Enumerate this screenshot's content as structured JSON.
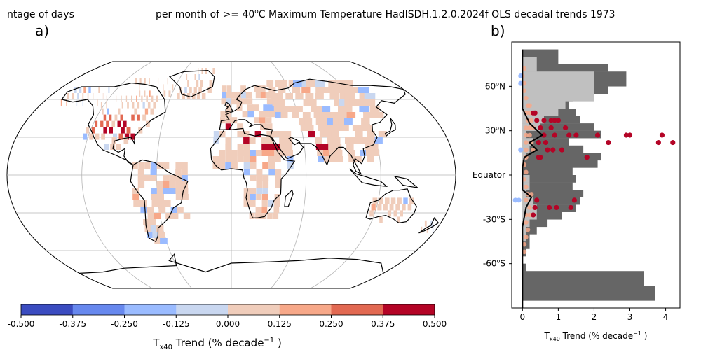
{
  "title": {
    "left": "ntage of days",
    "main": "per month of >= 40",
    "degree_sup": "o",
    "main_rest": "C Maximum Temperature HadISDH.1.2.0.2024f OLS decadal trends 1973"
  },
  "colors": {
    "colorbar": [
      "#3b4cc0",
      "#6788ee",
      "#9abbff",
      "#c9d7f0",
      "#f0cdbb",
      "#f7a889",
      "#e26952",
      "#b40426"
    ],
    "land_outline": "#000000",
    "graticule": "#b4b4b4",
    "dark_bar": "#666666",
    "light_bar": "#c0c0c0"
  },
  "chart_data": [
    {
      "type": "heatmap",
      "panel_label": "a)",
      "projection": "Robinson",
      "colorbar": {
        "ticks": [
          "-0.500",
          "-0.375",
          "-0.250",
          "-0.125",
          "0.000",
          "0.125",
          "0.250",
          "0.375",
          "0.500"
        ],
        "range": [
          -0.5,
          0.5
        ],
        "label_main": "T",
        "label_sub": "x40",
        "label_rest": " Trend (% decade",
        "label_sup": "−1",
        "label_end": " )"
      }
    },
    {
      "type": "scatter",
      "panel_label": "b)",
      "xlabel": {
        "main": "T",
        "sub": "x40",
        "rest": " Trend (% decade",
        "sup": "−1",
        "end": " )"
      },
      "xlim": [
        -0.3,
        4.4
      ],
      "ylim": [
        -90,
        90
      ],
      "xticks": [
        "0",
        "1",
        "2",
        "3",
        "4"
      ],
      "xtick_values": [
        0,
        1,
        2,
        3,
        4
      ],
      "yticks": [
        {
          "value": 60,
          "base": "60",
          "sup": "o",
          "end": "N"
        },
        {
          "value": 30,
          "base": "30",
          "sup": "o",
          "end": "N"
        },
        {
          "value": 0,
          "base": "Equator",
          "sup": "",
          "end": ""
        },
        {
          "value": -30,
          "base": "-30",
          "sup": "o",
          "end": "S"
        },
        {
          "value": -60,
          "base": "-60",
          "sup": "o",
          "end": "S"
        }
      ],
      "land_fraction_bars": [
        {
          "lat": 80,
          "value": 1.0
        },
        {
          "lat": 75,
          "value": 1.0
        },
        {
          "lat": 70,
          "value": 2.4
        },
        {
          "lat": 65,
          "value": 2.9
        },
        {
          "lat": 60,
          "value": 2.9
        },
        {
          "lat": 55,
          "value": 2.4
        },
        {
          "lat": 50,
          "value": 1.4
        },
        {
          "lat": 45,
          "value": 1.3
        },
        {
          "lat": 40,
          "value": 1.5
        },
        {
          "lat": 35,
          "value": 1.6
        },
        {
          "lat": 30,
          "value": 2.0
        },
        {
          "lat": 25,
          "value": 2.2
        },
        {
          "lat": 20,
          "value": 1.3
        },
        {
          "lat": 15,
          "value": 1.7
        },
        {
          "lat": 10,
          "value": 2.2
        },
        {
          "lat": 5,
          "value": 2.1
        },
        {
          "lat": 0,
          "value": 1.4
        },
        {
          "lat": -5,
          "value": 1.5
        },
        {
          "lat": -10,
          "value": 1.4
        },
        {
          "lat": -15,
          "value": 1.7
        },
        {
          "lat": -20,
          "value": 1.6
        },
        {
          "lat": -25,
          "value": 1.5
        },
        {
          "lat": -30,
          "value": 1.1
        },
        {
          "lat": -35,
          "value": 0.7
        },
        {
          "lat": -40,
          "value": 0.4
        },
        {
          "lat": -45,
          "value": 0.2
        },
        {
          "lat": -50,
          "value": 0.2
        },
        {
          "lat": -55,
          "value": 0.1
        },
        {
          "lat": -60,
          "value": 0.0
        },
        {
          "lat": -65,
          "value": 0.1
        },
        {
          "lat": -70,
          "value": 3.4
        },
        {
          "lat": -75,
          "value": 3.4
        },
        {
          "lat": -80,
          "value": 3.7
        },
        {
          "lat": -85,
          "value": 3.7
        }
      ],
      "coverage_bars": [
        {
          "lat": 75,
          "value": 0.4
        },
        {
          "lat": 70,
          "value": 0.4
        },
        {
          "lat": 65,
          "value": 2.0
        },
        {
          "lat": 60,
          "value": 2.0
        },
        {
          "lat": 55,
          "value": 2.0
        },
        {
          "lat": 50,
          "value": 2.0
        },
        {
          "lat": 45,
          "value": 1.2
        },
        {
          "lat": 40,
          "value": 1.0
        },
        {
          "lat": 35,
          "value": 0.6
        },
        {
          "lat": 30,
          "value": 0.5
        },
        {
          "lat": 25,
          "value": 0.1
        },
        {
          "lat": 20,
          "value": 0.3
        },
        {
          "lat": 15,
          "value": 0.2
        },
        {
          "lat": 10,
          "value": 0.1
        },
        {
          "lat": 5,
          "value": 0.0
        },
        {
          "lat": 0,
          "value": 0.0
        },
        {
          "lat": -5,
          "value": 0.2
        },
        {
          "lat": -10,
          "value": 0.2
        },
        {
          "lat": -15,
          "value": 0.1
        },
        {
          "lat": -20,
          "value": 0.3
        },
        {
          "lat": -25,
          "value": 0.4
        },
        {
          "lat": -30,
          "value": 0.4
        },
        {
          "lat": -35,
          "value": 0.2
        },
        {
          "lat": -40,
          "value": 0.1
        },
        {
          "lat": -45,
          "value": 0.1
        }
      ],
      "points": [
        {
          "x": 2.1,
          "lat": 27
        },
        {
          "x": 2.9,
          "lat": 27
        },
        {
          "x": 3.0,
          "lat": 27
        },
        {
          "x": 3.9,
          "lat": 27
        },
        {
          "x": 4.2,
          "lat": 22
        },
        {
          "x": 3.8,
          "lat": 22
        },
        {
          "x": 2.4,
          "lat": 22
        },
        {
          "x": 1.5,
          "lat": 27
        },
        {
          "x": 1.3,
          "lat": 27
        },
        {
          "x": 0.9,
          "lat": 27
        },
        {
          "x": 0.6,
          "lat": 27
        },
        {
          "x": 1.2,
          "lat": 32
        },
        {
          "x": 0.8,
          "lat": 32
        },
        {
          "x": 0.5,
          "lat": 32
        },
        {
          "x": 1.0,
          "lat": 37
        },
        {
          "x": 0.9,
          "lat": 37
        },
        {
          "x": 0.8,
          "lat": 37
        },
        {
          "x": 0.6,
          "lat": 37
        },
        {
          "x": 0.4,
          "lat": 37
        },
        {
          "x": 0.3,
          "lat": 42
        },
        {
          "x": 0.35,
          "lat": 42
        },
        {
          "x": 0.65,
          "lat": 22
        },
        {
          "x": 0.45,
          "lat": 22
        },
        {
          "x": 1.1,
          "lat": 17
        },
        {
          "x": 0.85,
          "lat": 17
        },
        {
          "x": 0.7,
          "lat": 17
        },
        {
          "x": 1.8,
          "lat": 12
        },
        {
          "x": 0.5,
          "lat": 12
        },
        {
          "x": 0.45,
          "lat": 12
        },
        {
          "x": 1.45,
          "lat": -17
        },
        {
          "x": 0.75,
          "lat": -22
        },
        {
          "x": 0.95,
          "lat": -22
        },
        {
          "x": 1.35,
          "lat": -22
        },
        {
          "x": 0.35,
          "lat": -22
        },
        {
          "x": 0.4,
          "lat": -17
        },
        {
          "x": 0.3,
          "lat": -27
        }
      ],
      "light_points": [
        {
          "x": 0.05,
          "lat": 72
        },
        {
          "x": 0.0,
          "lat": 67
        },
        {
          "x": 0.05,
          "lat": 62
        },
        {
          "x": 0.05,
          "lat": 57
        },
        {
          "x": 0.1,
          "lat": 52
        },
        {
          "x": 0.15,
          "lat": 47
        },
        {
          "x": 0.2,
          "lat": 47
        },
        {
          "x": 0.1,
          "lat": 42
        },
        {
          "x": 0.2,
          "lat": 42
        },
        {
          "x": 0.15,
          "lat": 37
        },
        {
          "x": 0.25,
          "lat": 37
        },
        {
          "x": 0.1,
          "lat": 32
        },
        {
          "x": 0.2,
          "lat": 32
        },
        {
          "x": 0.3,
          "lat": 32
        },
        {
          "x": 0.1,
          "lat": 27
        },
        {
          "x": 0.2,
          "lat": 27
        },
        {
          "x": 0.1,
          "lat": 22
        },
        {
          "x": 0.25,
          "lat": 22
        },
        {
          "x": 0.1,
          "lat": 17
        },
        {
          "x": 0.3,
          "lat": 17
        },
        {
          "x": 0.1,
          "lat": 12
        },
        {
          "x": 0.05,
          "lat": 7
        },
        {
          "x": 0.1,
          "lat": 2
        },
        {
          "x": 0.05,
          "lat": -3
        },
        {
          "x": 0.1,
          "lat": -8
        },
        {
          "x": 0.15,
          "lat": -13
        },
        {
          "x": 0.25,
          "lat": -13
        },
        {
          "x": 0.1,
          "lat": -17
        },
        {
          "x": 0.2,
          "lat": -22
        },
        {
          "x": 0.1,
          "lat": -27
        },
        {
          "x": 0.2,
          "lat": -27
        },
        {
          "x": 0.1,
          "lat": -32
        },
        {
          "x": 0.15,
          "lat": -37
        },
        {
          "x": 0.1,
          "lat": -42
        },
        {
          "x": 0.05,
          "lat": -47
        },
        {
          "x": 0.05,
          "lat": -52
        }
      ],
      "blue_points": [
        {
          "x": -0.05,
          "lat": 67
        },
        {
          "x": -0.05,
          "lat": 17
        },
        {
          "x": -0.1,
          "lat": -17
        },
        {
          "x": -0.2,
          "lat": -17
        },
        {
          "x": -0.05,
          "lat": 62
        }
      ],
      "mean_line": [
        {
          "x": 0.0,
          "lat": 85
        },
        {
          "x": 0.0,
          "lat": 45
        },
        {
          "x": 0.1,
          "lat": 40
        },
        {
          "x": 0.2,
          "lat": 35
        },
        {
          "x": 0.55,
          "lat": 27
        },
        {
          "x": 0.2,
          "lat": 22
        },
        {
          "x": 0.4,
          "lat": 17
        },
        {
          "x": 0.05,
          "lat": 12
        },
        {
          "x": 0.0,
          "lat": 5
        },
        {
          "x": 0.0,
          "lat": -10
        },
        {
          "x": 0.25,
          "lat": -15
        },
        {
          "x": 0.1,
          "lat": -22
        },
        {
          "x": 0.0,
          "lat": -35
        },
        {
          "x": 0.0,
          "lat": -90
        }
      ]
    }
  ]
}
